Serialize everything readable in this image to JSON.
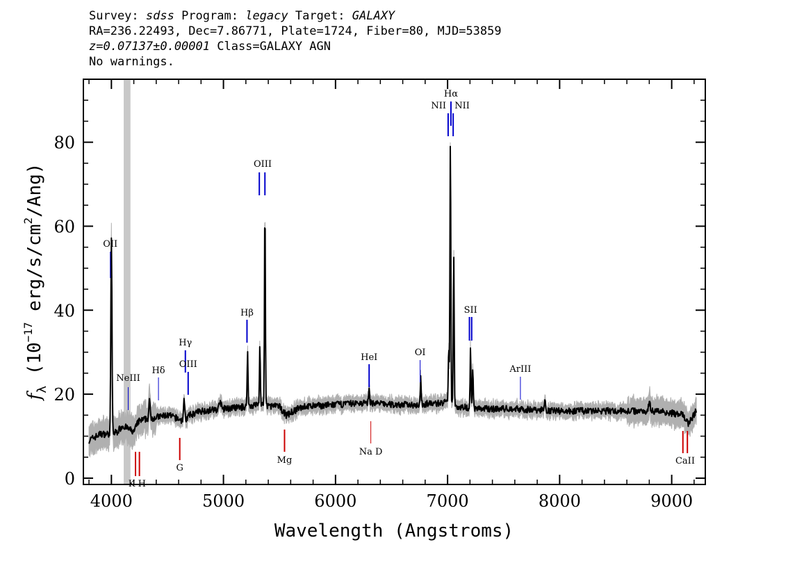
{
  "header": {
    "survey_label": "Survey: ",
    "survey": "sdss",
    "program_label": " Program: ",
    "program": "legacy",
    "target_label": " Target: ",
    "target": "GALAXY",
    "line2": "RA=236.22493, Dec=7.86771, Plate=1724, Fiber=80, MJD=53859",
    "redshift": "z=0.07137±0.00001",
    "class_text": " Class=GALAXY AGN",
    "warnings": "No warnings."
  },
  "chart_data": {
    "type": "line",
    "xlabel": "Wavelength (Angstroms)",
    "ylabel_main": "f",
    "ylabel_sub": "λ",
    "ylabel_units": " (10",
    "ylabel_exp": "−17",
    "ylabel_rest": " erg/s/cm",
    "ylabel_exp2": "2",
    "ylabel_end": "/Ang)",
    "xlim": [
      3750,
      9300
    ],
    "ylim": [
      -1.5,
      95
    ],
    "x_ticks": [
      4000,
      5000,
      6000,
      7000,
      8000,
      9000
    ],
    "x_tick_labels": [
      "4000",
      "5000",
      "6000",
      "7000",
      "8000",
      "9000"
    ],
    "y_ticks": [
      0,
      20,
      40,
      60,
      80
    ],
    "y_tick_labels": [
      "0",
      "20",
      "40",
      "60",
      "80"
    ],
    "masked_region": [
      4110,
      4170
    ],
    "series": [
      {
        "color": "#000000",
        "continuum": [
          [
            3800,
            9
          ],
          [
            3900,
            10.5
          ],
          [
            3990,
            10.5
          ],
          [
            4050,
            11
          ],
          [
            4100,
            12.5
          ],
          [
            4200,
            11
          ],
          [
            4240,
            13.5
          ],
          [
            4300,
            14
          ],
          [
            4400,
            14.5
          ],
          [
            4500,
            15
          ],
          [
            4560,
            14.5
          ],
          [
            4650,
            13.5
          ],
          [
            4700,
            15
          ],
          [
            4800,
            16
          ],
          [
            5000,
            16.5
          ],
          [
            5200,
            17
          ],
          [
            5300,
            17.5
          ],
          [
            5500,
            17
          ],
          [
            5560,
            15
          ],
          [
            5700,
            17
          ],
          [
            6000,
            17.5
          ],
          [
            6300,
            18
          ],
          [
            6500,
            17.5
          ],
          [
            6700,
            17.5
          ],
          [
            7000,
            18
          ],
          [
            7100,
            17
          ],
          [
            7300,
            16.5
          ],
          [
            7600,
            16.5
          ],
          [
            8000,
            16
          ],
          [
            8500,
            16
          ],
          [
            8900,
            16
          ],
          [
            9000,
            15.5
          ],
          [
            9100,
            15
          ],
          [
            9150,
            13
          ],
          [
            9220,
            16
          ]
        ],
        "emission": [
          [
            4000,
            47,
            5
          ],
          [
            4340,
            4,
            6
          ],
          [
            4650,
            5,
            6
          ],
          [
            4970,
            2,
            8
          ],
          [
            5215,
            13,
            4
          ],
          [
            5325,
            14,
            4
          ],
          [
            5370,
            47,
            4
          ],
          [
            6300,
            3,
            4
          ],
          [
            6760,
            6,
            4
          ],
          [
            7010,
            13,
            4
          ],
          [
            7025,
            63,
            4
          ],
          [
            7055,
            36,
            4
          ],
          [
            7205,
            14,
            4
          ],
          [
            7225,
            10,
            4
          ],
          [
            7870,
            2,
            6
          ],
          [
            8800,
            2,
            8
          ]
        ]
      }
    ],
    "emission_lines": [
      {
        "label": "OII",
        "wavelength": 3990
      },
      {
        "label": "NeIII",
        "wavelength": 4150
      },
      {
        "label": "Hδ",
        "wavelength": 4420
      },
      {
        "label": "Hγ",
        "wavelength": 4660
      },
      {
        "label": "OIII",
        "wavelength": 4685
      },
      {
        "label": "Hβ",
        "wavelength": 5210
      },
      {
        "label": "OIII",
        "wavelength": 5320
      },
      {
        "label": "OIII",
        "wavelength": 5370
      },
      {
        "label": "HeI",
        "wavelength": 6300
      },
      {
        "label": "OI",
        "wavelength": 6755
      },
      {
        "label": "NII",
        "wavelength": 7005
      },
      {
        "label": "Hα",
        "wavelength": 7030
      },
      {
        "label": "NII",
        "wavelength": 7050
      },
      {
        "label": "SII",
        "wavelength": 7195
      },
      {
        "label": "SII",
        "wavelength": 7215
      },
      {
        "label": "ArIII",
        "wavelength": 7650
      }
    ],
    "absorption_lines": [
      {
        "label": "K H",
        "wavelength": 4215
      },
      {
        "label": "K H",
        "wavelength": 4250
      },
      {
        "label": "G",
        "wavelength": 4610
      },
      {
        "label": "Mg",
        "wavelength": 5545
      },
      {
        "label": "Na D",
        "wavelength": 6315
      },
      {
        "label": "CaII",
        "wavelength": 9100
      },
      {
        "label": "CaII",
        "wavelength": 9140
      }
    ],
    "emission_color": "#0000cc",
    "absorption_color": "#cc0000",
    "error_color": "#b0b0b0",
    "mask_color": "#c8c8c8"
  }
}
